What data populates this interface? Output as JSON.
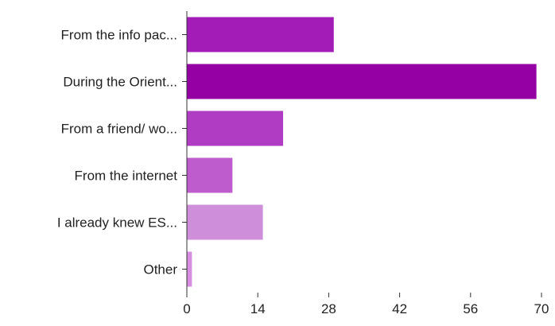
{
  "chart_data": {
    "type": "bar",
    "orientation": "horizontal",
    "categories": [
      "From the info pac...",
      "During the Orient...",
      "From a friend/ wo...",
      "From the internet",
      "I already knew ES...",
      "Other"
    ],
    "values": [
      29,
      69,
      19,
      9,
      15,
      1
    ],
    "bar_colors": [
      "#a31cb8",
      "#9400a3",
      "#af3cc2",
      "#be5ccd",
      "#cf8ed9",
      "#d68fe0"
    ],
    "x_ticks": [
      0,
      14,
      28,
      42,
      56,
      70
    ],
    "xlim": [
      0,
      70
    ],
    "title": "",
    "xlabel": "",
    "ylabel": "",
    "grid": false,
    "legend": "none"
  }
}
